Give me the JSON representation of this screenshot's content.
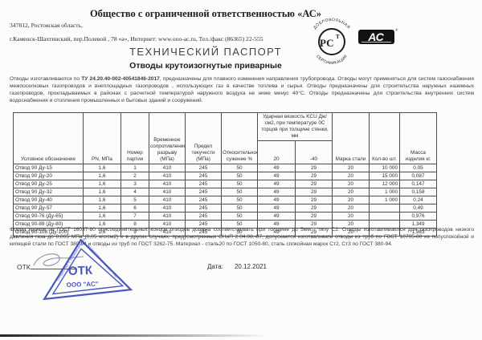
{
  "header": {
    "company": "Общество с ограниченной ответственностью «АС»",
    "address_line1": "347812, Ростовская область,",
    "address_line2": "г.Каменск-Шахтинский,  пер.Полевой , 78 «а», Интернет: www.ooo-ac.ru, Тел./факс (86365) 22-555",
    "doc_title": "ТЕХНИЧЕСКИЙ ПАСПОРТ",
    "doc_subtitle": "Отводы крутоизогнутые приварные"
  },
  "logos": {
    "cert_top": "ДОБРОВОЛЬНАЯ",
    "cert_center_main": "РС",
    "cert_center_small": "Т",
    "cert_bottom": "СЕРТИФИКАЦИЯ",
    "brand": "АС",
    "brand_reg": "®"
  },
  "intro": {
    "prefix": "Отводы изготавливаются по ",
    "tu": "ТУ 24.20.40-002-40541846-2017",
    "rest": ", предназначены для плавного изменения направления трубопровода. Отводы могут применяться для систем газоснабжения межпоселковых газопроводов и внеплощадных газопроводов , использующих газ в качестве топлива и сырья.  Отводы предназначены для строительства наружных наземных газопроводов, прокладываемых в районах с расчетной температурой наружного воздуха не ниже минус 40°С. Отводы предназначены для строительства  внутренних систем водоснабжения и отопления промышленных и бытовых зданий и сооружений."
  },
  "table": {
    "col_labels": [
      "Условное обозначение",
      "PN, МПа",
      "Номер партии",
      "Временное сопротивление разрыву (МПа)",
      "Предел текучести (МПа)",
      "Относительное сужение %",
      "Марка стали",
      "Кол-во шт.",
      "Масса изделия кг."
    ],
    "kcu_group": "Ударная вязкость KCU Дж/см2, при температуре 0С торцов при толщине стенки, мм",
    "kcu_sub": [
      "20",
      "-40"
    ],
    "rows": [
      [
        "Отвод 90 Ду-15",
        "1,6",
        "1",
        "410",
        "245",
        "50",
        "49",
        "29",
        "20",
        "10 000",
        "0,05"
      ],
      [
        "Отвод 90 Ду-20",
        "1,6",
        "2",
        "410",
        "245",
        "50",
        "49",
        "29",
        "20",
        "15 000",
        "0,087"
      ],
      [
        "Отвод 90 Ду-25",
        "1,6",
        "3",
        "410",
        "245",
        "50",
        "49",
        "29",
        "20",
        "12 000",
        "0,147"
      ],
      [
        "Отвод 90 Ду-32",
        "1,6",
        "4",
        "410",
        "245",
        "50",
        "49",
        "29",
        "20",
        "1 000",
        "0,158"
      ],
      [
        "Отвод 90 Ду-40",
        "1,6",
        "5",
        "410",
        "245",
        "50",
        "49",
        "29",
        "20",
        "1 000",
        "0,24"
      ],
      [
        "Отвод 90 Ду-57",
        "1,6",
        "6",
        "410",
        "245",
        "50",
        "49",
        "29",
        "20",
        "",
        "0,49"
      ],
      [
        "Отвод 90-76 (Ду-65)",
        "1,6",
        "7",
        "410",
        "245",
        "50",
        "49",
        "29",
        "20",
        "",
        "0,976"
      ],
      [
        "Отвод 90-89 (Ду-80)",
        "1,6",
        "8",
        "410",
        "245",
        "50",
        "49",
        "29",
        "20",
        "",
        "1,349"
      ],
      [
        "Отвод 90-108 (Ду-100)",
        "1,6",
        "9",
        "410",
        "245",
        "50",
        "49",
        "29",
        "20",
        "",
        "1,983"
      ]
    ]
  },
  "footer": {
    "note": "Форма кромок по ГОСТ 16037-80 присоединительных концов отводов должна соответствовать при толщине до 5мм - типу С2. Отводы изготавливаются для газопроводов низкого давления газа до 0,005 МПа (0,05 кгс/см2) и в других случаях, предусмотренных СНиП 2.04.08.-87, допускается изготавливать отводы из труб по ГОСТ 10705-80 из полуспокойной и кипящей стали по ГОСТ 380-94 и отводы из труб по ГОСТ 3262-75. Материал - сталь20 по ГОСТ 1050-80, сталь спокойная марок Ст2, Ст3 по ГОСТ 380-94.",
    "otk_label": "ОТК",
    "date_label": "Дата:",
    "date_value": "20.12.2021",
    "stamp": {
      "line1": "ОТК",
      "line2": "ООО \"АС\"",
      "edge_left": "Общество с ограниченной",
      "edge_right": "ответственностью \"АС\""
    }
  },
  "colors": {
    "stamp_blue": "#3a49bb",
    "ink": "#3a3a3a"
  }
}
